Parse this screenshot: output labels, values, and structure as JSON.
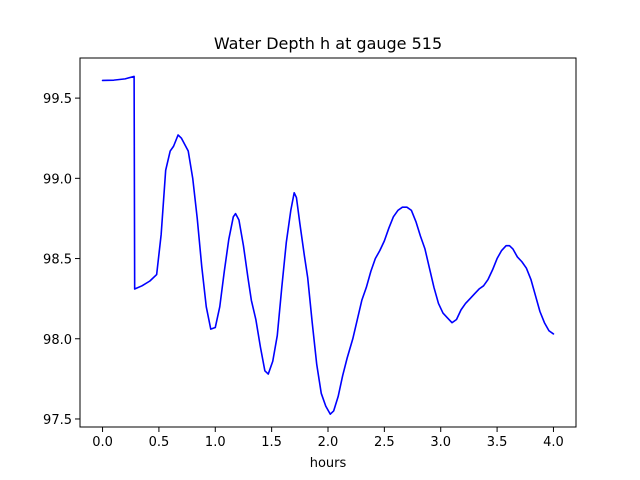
{
  "chart_data": {
    "type": "line",
    "title": "Water Depth h at gauge 515",
    "xlabel": "hours",
    "ylabel": "",
    "xlim": [
      -0.2,
      4.2
    ],
    "ylim": [
      97.45,
      99.75
    ],
    "x_ticks": [
      0.0,
      0.5,
      1.0,
      1.5,
      2.0,
      2.5,
      3.0,
      3.5,
      4.0
    ],
    "x_tick_labels": [
      "0.0",
      "0.5",
      "1.0",
      "1.5",
      "2.0",
      "2.5",
      "3.0",
      "3.5",
      "4.0"
    ],
    "y_ticks": [
      97.5,
      98.0,
      98.5,
      99.0,
      99.5
    ],
    "y_tick_labels": [
      "97.5",
      "98.0",
      "98.5",
      "99.0",
      "99.5"
    ],
    "grid": false,
    "series": [
      {
        "color": "#0000ff",
        "points": [
          [
            0.0,
            99.61
          ],
          [
            0.1,
            99.612
          ],
          [
            0.2,
            99.62
          ],
          [
            0.28,
            99.635
          ],
          [
            0.285,
            98.31
          ],
          [
            0.35,
            98.33
          ],
          [
            0.42,
            98.36
          ],
          [
            0.48,
            98.4
          ],
          [
            0.52,
            98.65
          ],
          [
            0.56,
            99.05
          ],
          [
            0.6,
            99.17
          ],
          [
            0.63,
            99.2
          ],
          [
            0.67,
            99.27
          ],
          [
            0.7,
            99.25
          ],
          [
            0.76,
            99.17
          ],
          [
            0.8,
            99.0
          ],
          [
            0.84,
            98.75
          ],
          [
            0.88,
            98.45
          ],
          [
            0.92,
            98.2
          ],
          [
            0.96,
            98.06
          ],
          [
            1.0,
            98.07
          ],
          [
            1.04,
            98.2
          ],
          [
            1.08,
            98.42
          ],
          [
            1.12,
            98.62
          ],
          [
            1.16,
            98.76
          ],
          [
            1.18,
            98.78
          ],
          [
            1.21,
            98.74
          ],
          [
            1.25,
            98.58
          ],
          [
            1.29,
            98.38
          ],
          [
            1.32,
            98.24
          ],
          [
            1.36,
            98.12
          ],
          [
            1.4,
            97.95
          ],
          [
            1.44,
            97.8
          ],
          [
            1.47,
            97.78
          ],
          [
            1.51,
            97.86
          ],
          [
            1.55,
            98.02
          ],
          [
            1.59,
            98.32
          ],
          [
            1.63,
            98.6
          ],
          [
            1.67,
            98.8
          ],
          [
            1.7,
            98.91
          ],
          [
            1.72,
            98.88
          ],
          [
            1.75,
            98.72
          ],
          [
            1.79,
            98.52
          ],
          [
            1.82,
            98.38
          ],
          [
            1.86,
            98.1
          ],
          [
            1.9,
            97.84
          ],
          [
            1.94,
            97.66
          ],
          [
            1.98,
            97.58
          ],
          [
            2.02,
            97.53
          ],
          [
            2.05,
            97.55
          ],
          [
            2.09,
            97.64
          ],
          [
            2.13,
            97.77
          ],
          [
            2.17,
            97.88
          ],
          [
            2.22,
            98.0
          ],
          [
            2.26,
            98.12
          ],
          [
            2.3,
            98.24
          ],
          [
            2.34,
            98.32
          ],
          [
            2.38,
            98.42
          ],
          [
            2.42,
            98.5
          ],
          [
            2.46,
            98.55
          ],
          [
            2.5,
            98.61
          ],
          [
            2.54,
            98.69
          ],
          [
            2.58,
            98.76
          ],
          [
            2.62,
            98.8
          ],
          [
            2.66,
            98.82
          ],
          [
            2.7,
            98.82
          ],
          [
            2.74,
            98.8
          ],
          [
            2.78,
            98.73
          ],
          [
            2.82,
            98.64
          ],
          [
            2.86,
            98.56
          ],
          [
            2.9,
            98.44
          ],
          [
            2.94,
            98.32
          ],
          [
            2.98,
            98.22
          ],
          [
            3.02,
            98.16
          ],
          [
            3.06,
            98.13
          ],
          [
            3.1,
            98.1
          ],
          [
            3.14,
            98.12
          ],
          [
            3.18,
            98.18
          ],
          [
            3.22,
            98.22
          ],
          [
            3.26,
            98.25
          ],
          [
            3.3,
            98.28
          ],
          [
            3.34,
            98.31
          ],
          [
            3.38,
            98.33
          ],
          [
            3.42,
            98.37
          ],
          [
            3.46,
            98.43
          ],
          [
            3.5,
            98.5
          ],
          [
            3.54,
            98.55
          ],
          [
            3.58,
            98.58
          ],
          [
            3.61,
            98.58
          ],
          [
            3.64,
            98.56
          ],
          [
            3.68,
            98.51
          ],
          [
            3.72,
            98.48
          ],
          [
            3.76,
            98.44
          ],
          [
            3.8,
            98.37
          ],
          [
            3.84,
            98.27
          ],
          [
            3.88,
            98.17
          ],
          [
            3.92,
            98.1
          ],
          [
            3.96,
            98.05
          ],
          [
            4.0,
            98.03
          ]
        ]
      }
    ]
  }
}
